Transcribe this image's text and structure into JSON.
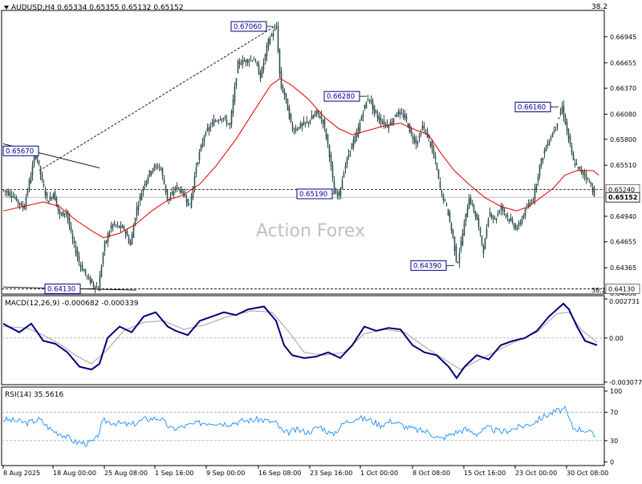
{
  "header": {
    "symbol_line": "AUDUSD,H4  0.65334 0.65355 0.65132 0.65152",
    "fib_top_label": "38.2",
    "fib_bottom_label": "38.2"
  },
  "watermark": "Action Forex",
  "colors": {
    "candle": "#2f4f4f",
    "ma": "#e00000",
    "macd": "#00007a",
    "signal": "#a0a0a0",
    "rsi": "#1e90ff",
    "label_border": "#00008b"
  },
  "chart_data": [
    {
      "type": "candlestick",
      "title": "AUDUSD,H4",
      "ohlc_header": {
        "open": 0.65334,
        "high": 0.65355,
        "low": 0.65132,
        "close": 0.65152
      },
      "ylim": [
        0.6408,
        0.6723
      ],
      "y_ticks": [
        "0.66945",
        "0.66655",
        "0.66370",
        "0.66080",
        "0.65800",
        "0.65510",
        "0.64940",
        "0.64655",
        "0.64365",
        "0.64080"
      ],
      "horizontal_levels": [
        {
          "label": "0.65240",
          "value": 0.6524,
          "style": "dashed"
        },
        {
          "label": "0.65152",
          "value": 0.65152,
          "style": "solid",
          "current": true
        },
        {
          "label": "0.64130",
          "value": 0.6413,
          "style": "dashed"
        }
      ],
      "annotations": [
        {
          "text": "0.67060",
          "value": 0.6706
        },
        {
          "text": "0.66280",
          "value": 0.6628
        },
        {
          "text": "0.66160",
          "value": 0.6616
        },
        {
          "text": "0.65670",
          "value": 0.6567
        },
        {
          "text": "0.65190",
          "value": 0.6519
        },
        {
          "text": "0.64390",
          "value": 0.6439
        },
        {
          "text": "0.64130",
          "value": 0.6413
        }
      ],
      "path": [
        [
          0,
          0.6523
        ],
        [
          10,
          0.6518
        ],
        [
          25,
          0.6503
        ],
        [
          35,
          0.6545
        ],
        [
          40,
          0.6567
        ],
        [
          48,
          0.6532
        ],
        [
          55,
          0.651
        ],
        [
          62,
          0.652
        ],
        [
          70,
          0.6495
        ],
        [
          78,
          0.65
        ],
        [
          85,
          0.647
        ],
        [
          95,
          0.644
        ],
        [
          105,
          0.6425
        ],
        [
          113,
          0.6416
        ],
        [
          118,
          0.6413
        ],
        [
          122,
          0.644
        ],
        [
          125,
          0.646
        ],
        [
          135,
          0.6485
        ],
        [
          150,
          0.648
        ],
        [
          158,
          0.6462
        ],
        [
          165,
          0.65
        ],
        [
          175,
          0.653
        ],
        [
          185,
          0.6548
        ],
        [
          195,
          0.655
        ],
        [
          205,
          0.651
        ],
        [
          215,
          0.6528
        ],
        [
          225,
          0.6518
        ],
        [
          232,
          0.6505
        ],
        [
          240,
          0.655
        ],
        [
          250,
          0.6585
        ],
        [
          262,
          0.66
        ],
        [
          272,
          0.6605
        ],
        [
          282,
          0.6595
        ],
        [
          292,
          0.6665
        ],
        [
          302,
          0.6668
        ],
        [
          312,
          0.667
        ],
        [
          320,
          0.665
        ],
        [
          330,
          0.669
        ],
        [
          336,
          0.67
        ],
        [
          340,
          0.6706
        ],
        [
          345,
          0.664
        ],
        [
          350,
          0.663
        ],
        [
          360,
          0.659
        ],
        [
          370,
          0.6595
        ],
        [
          380,
          0.66
        ],
        [
          390,
          0.661
        ],
        [
          398,
          0.66
        ],
        [
          405,
          0.657
        ],
        [
          412,
          0.652
        ],
        [
          418,
          0.6519
        ],
        [
          425,
          0.6548
        ],
        [
          432,
          0.657
        ],
        [
          440,
          0.6585
        ],
        [
          448,
          0.6612
        ],
        [
          455,
          0.6628
        ],
        [
          462,
          0.661
        ],
        [
          470,
          0.66
        ],
        [
          480,
          0.6595
        ],
        [
          490,
          0.661
        ],
        [
          500,
          0.6605
        ],
        [
          508,
          0.6585
        ],
        [
          515,
          0.6575
        ],
        [
          522,
          0.6595
        ],
        [
          530,
          0.658
        ],
        [
          538,
          0.6555
        ],
        [
          545,
          0.652
        ],
        [
          552,
          0.6505
        ],
        [
          560,
          0.647
        ],
        [
          565,
          0.6439
        ],
        [
          572,
          0.6475
        ],
        [
          580,
          0.6515
        ],
        [
          590,
          0.649
        ],
        [
          598,
          0.6455
        ],
        [
          605,
          0.65
        ],
        [
          612,
          0.649
        ],
        [
          620,
          0.6505
        ],
        [
          630,
          0.649
        ],
        [
          640,
          0.648
        ],
        [
          650,
          0.65
        ],
        [
          660,
          0.6515
        ],
        [
          668,
          0.655
        ],
        [
          675,
          0.657
        ],
        [
          683,
          0.6585
        ],
        [
          690,
          0.66
        ],
        [
          696,
          0.6616
        ],
        [
          703,
          0.6585
        ],
        [
          710,
          0.6555
        ],
        [
          718,
          0.6545
        ],
        [
          725,
          0.654
        ],
        [
          732,
          0.6528
        ],
        [
          738,
          0.6515
        ]
      ],
      "moving_average": [
        [
          0,
          0.65
        ],
        [
          25,
          0.6505
        ],
        [
          50,
          0.651
        ],
        [
          70,
          0.6505
        ],
        [
          90,
          0.649
        ],
        [
          110,
          0.6478
        ],
        [
          125,
          0.647
        ],
        [
          145,
          0.6475
        ],
        [
          165,
          0.6485
        ],
        [
          185,
          0.65
        ],
        [
          205,
          0.6512
        ],
        [
          225,
          0.6518
        ],
        [
          245,
          0.653
        ],
        [
          265,
          0.655
        ],
        [
          290,
          0.658
        ],
        [
          315,
          0.6615
        ],
        [
          333,
          0.664
        ],
        [
          345,
          0.6648
        ],
        [
          360,
          0.664
        ],
        [
          380,
          0.6625
        ],
        [
          400,
          0.6605
        ],
        [
          418,
          0.6592
        ],
        [
          435,
          0.6585
        ],
        [
          455,
          0.659
        ],
        [
          475,
          0.6595
        ],
        [
          495,
          0.6598
        ],
        [
          515,
          0.659
        ],
        [
          530,
          0.6585
        ],
        [
          545,
          0.6565
        ],
        [
          562,
          0.6545
        ],
        [
          580,
          0.653
        ],
        [
          600,
          0.6515
        ],
        [
          620,
          0.6505
        ],
        [
          640,
          0.65
        ],
        [
          655,
          0.6505
        ],
        [
          670,
          0.6515
        ],
        [
          685,
          0.6525
        ],
        [
          700,
          0.654
        ],
        [
          715,
          0.6545
        ],
        [
          735,
          0.6545
        ],
        [
          742,
          0.654
        ]
      ],
      "trendlines": [
        {
          "style": "solid",
          "from": [
            0,
            0.6575
          ],
          "to": [
            120,
            0.6548
          ]
        },
        {
          "style": "dashed",
          "from": [
            45,
            0.6545
          ],
          "to": [
            338,
            0.6706
          ]
        }
      ],
      "x_tick_labels": [
        "8 Aug 2025",
        "18 Aug 00:00",
        "25 Aug 08:00",
        "1 Sep 16:00",
        "9 Sep 00:00",
        "16 Sep 08:00",
        "23 Sep 16:00",
        "1 Oct 00:00",
        "8 Oct 08:00",
        "15 Oct 16:00",
        "23 Oct 00:00",
        "30 Oct 08:00"
      ]
    },
    {
      "type": "line",
      "title": "MACD(12,26,9) -0.000682 -0.000339",
      "ylim": [
        -0.0032,
        0.0029
      ],
      "y_ticks": [
        "0.002731",
        "0.00",
        "-0.003077"
      ],
      "macd": [
        [
          0,
          0.001
        ],
        [
          20,
          0.0004
        ],
        [
          35,
          0.001
        ],
        [
          50,
          -0.0002
        ],
        [
          65,
          -0.0004
        ],
        [
          80,
          -0.001
        ],
        [
          95,
          -0.002
        ],
        [
          110,
          -0.0022
        ],
        [
          120,
          -0.0018
        ],
        [
          130,
          0.0
        ],
        [
          145,
          0.0008
        ],
        [
          160,
          0.0004
        ],
        [
          175,
          0.0015
        ],
        [
          190,
          0.0018
        ],
        [
          205,
          0.0008
        ],
        [
          215,
          0.0005
        ],
        [
          230,
          0.0002
        ],
        [
          245,
          0.0012
        ],
        [
          260,
          0.0015
        ],
        [
          275,
          0.0018
        ],
        [
          290,
          0.0016
        ],
        [
          305,
          0.002
        ],
        [
          325,
          0.0022
        ],
        [
          340,
          0.0012
        ],
        [
          350,
          -0.0005
        ],
        [
          360,
          -0.0012
        ],
        [
          375,
          -0.0014
        ],
        [
          390,
          -0.0013
        ],
        [
          405,
          -0.001
        ],
        [
          420,
          -0.0014
        ],
        [
          435,
          -0.0005
        ],
        [
          450,
          0.0008
        ],
        [
          465,
          0.0005
        ],
        [
          480,
          0.0007
        ],
        [
          495,
          0.0006
        ],
        [
          510,
          -0.0005
        ],
        [
          525,
          -0.001
        ],
        [
          540,
          -0.0012
        ],
        [
          555,
          -0.002
        ],
        [
          565,
          -0.0028
        ],
        [
          575,
          -0.002
        ],
        [
          590,
          -0.0012
        ],
        [
          605,
          -0.0015
        ],
        [
          620,
          -0.0005
        ],
        [
          635,
          -0.0002
        ],
        [
          650,
          0.0
        ],
        [
          665,
          0.0005
        ],
        [
          680,
          0.0015
        ],
        [
          698,
          0.0024
        ],
        [
          705,
          0.002
        ],
        [
          715,
          0.0008
        ],
        [
          725,
          -0.0002
        ],
        [
          740,
          -0.0005
        ]
      ],
      "signal": [
        [
          0,
          0.0008
        ],
        [
          30,
          0.0007
        ],
        [
          50,
          0.0002
        ],
        [
          70,
          -0.0004
        ],
        [
          90,
          -0.0012
        ],
        [
          110,
          -0.0018
        ],
        [
          130,
          -0.0008
        ],
        [
          150,
          0.0005
        ],
        [
          175,
          0.0011
        ],
        [
          200,
          0.0012
        ],
        [
          225,
          0.0006
        ],
        [
          250,
          0.0009
        ],
        [
          280,
          0.0015
        ],
        [
          310,
          0.0019
        ],
        [
          335,
          0.0018
        ],
        [
          355,
          0.0005
        ],
        [
          375,
          -0.001
        ],
        [
          400,
          -0.0012
        ],
        [
          425,
          -0.001
        ],
        [
          450,
          0.0003
        ],
        [
          475,
          0.0006
        ],
        [
          500,
          0.0004
        ],
        [
          525,
          -0.0006
        ],
        [
          550,
          -0.0015
        ],
        [
          570,
          -0.0022
        ],
        [
          590,
          -0.0016
        ],
        [
          615,
          -0.0009
        ],
        [
          640,
          -0.0002
        ],
        [
          665,
          0.0004
        ],
        [
          690,
          0.0017
        ],
        [
          705,
          0.0018
        ],
        [
          720,
          0.0006
        ],
        [
          740,
          -0.0003
        ]
      ]
    },
    {
      "type": "line",
      "title": "RSI(14) 35.5616",
      "ylim": [
        0,
        100
      ],
      "y_ticks": [
        "100",
        "70",
        "30",
        "0"
      ],
      "levels": [
        70,
        30
      ],
      "values": [
        [
          0,
          60
        ],
        [
          15,
          58
        ],
        [
          30,
          55
        ],
        [
          45,
          60
        ],
        [
          60,
          45
        ],
        [
          75,
          38
        ],
        [
          90,
          28
        ],
        [
          105,
          26
        ],
        [
          115,
          30
        ],
        [
          125,
          58
        ],
        [
          140,
          55
        ],
        [
          160,
          52
        ],
        [
          175,
          60
        ],
        [
          195,
          62
        ],
        [
          210,
          46
        ],
        [
          225,
          50
        ],
        [
          245,
          55
        ],
        [
          260,
          56
        ],
        [
          280,
          54
        ],
        [
          300,
          58
        ],
        [
          320,
          60
        ],
        [
          340,
          55
        ],
        [
          350,
          40
        ],
        [
          365,
          45
        ],
        [
          380,
          42
        ],
        [
          395,
          50
        ],
        [
          410,
          38
        ],
        [
          425,
          55
        ],
        [
          440,
          62
        ],
        [
          455,
          60
        ],
        [
          470,
          52
        ],
        [
          485,
          58
        ],
        [
          500,
          50
        ],
        [
          515,
          45
        ],
        [
          530,
          42
        ],
        [
          545,
          32
        ],
        [
          560,
          40
        ],
        [
          575,
          46
        ],
        [
          590,
          40
        ],
        [
          605,
          48
        ],
        [
          620,
          42
        ],
        [
          640,
          48
        ],
        [
          660,
          55
        ],
        [
          675,
          65
        ],
        [
          690,
          72
        ],
        [
          700,
          74
        ],
        [
          710,
          48
        ],
        [
          725,
          45
        ],
        [
          738,
          36
        ]
      ]
    }
  ]
}
